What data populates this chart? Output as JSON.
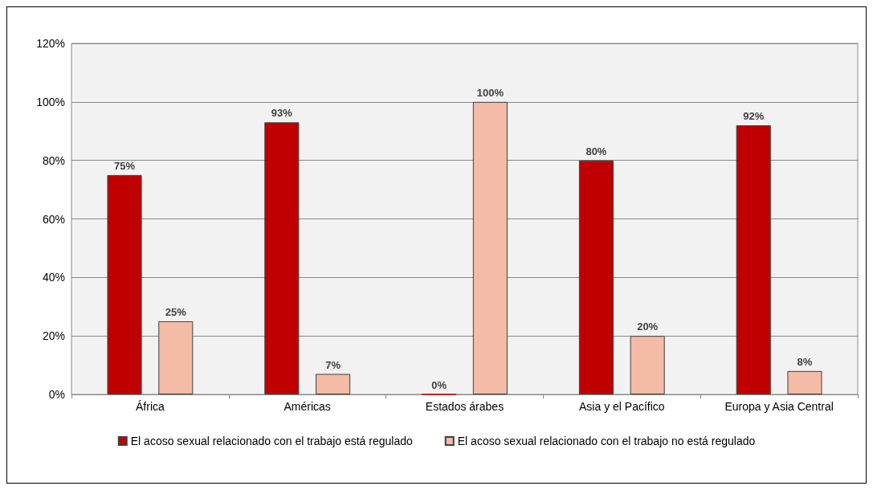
{
  "chart_data": {
    "type": "bar",
    "categories": [
      "África",
      "Américas",
      "Estados árabes",
      "Asia y el Pacífico",
      "Europa y Asia Central"
    ],
    "series": [
      {
        "name": "El acoso sexual relacionado con el trabajo está regulado",
        "color": "#c00000",
        "values": [
          75,
          93,
          0,
          80,
          92
        ],
        "value_labels": [
          "75%",
          "93%",
          "0%",
          "80%",
          "92%"
        ]
      },
      {
        "name": "El acoso sexual relacionado con el trabajo no está regulado",
        "color": "#f4bba6",
        "values": [
          25,
          7,
          100,
          20,
          8
        ],
        "value_labels": [
          "25%",
          "7%",
          "100%",
          "20%",
          "8%"
        ]
      }
    ],
    "ylim": [
      0,
      120
    ],
    "yticks": [
      {
        "value": 0,
        "label": "0%"
      },
      {
        "value": 20,
        "label": "20%"
      },
      {
        "value": 40,
        "label": "40%"
      },
      {
        "value": 60,
        "label": "60%"
      },
      {
        "value": 80,
        "label": "80%"
      },
      {
        "value": 100,
        "label": "100%"
      },
      {
        "value": 120,
        "label": "120%"
      }
    ],
    "grid": "y",
    "legend": "bottom"
  }
}
